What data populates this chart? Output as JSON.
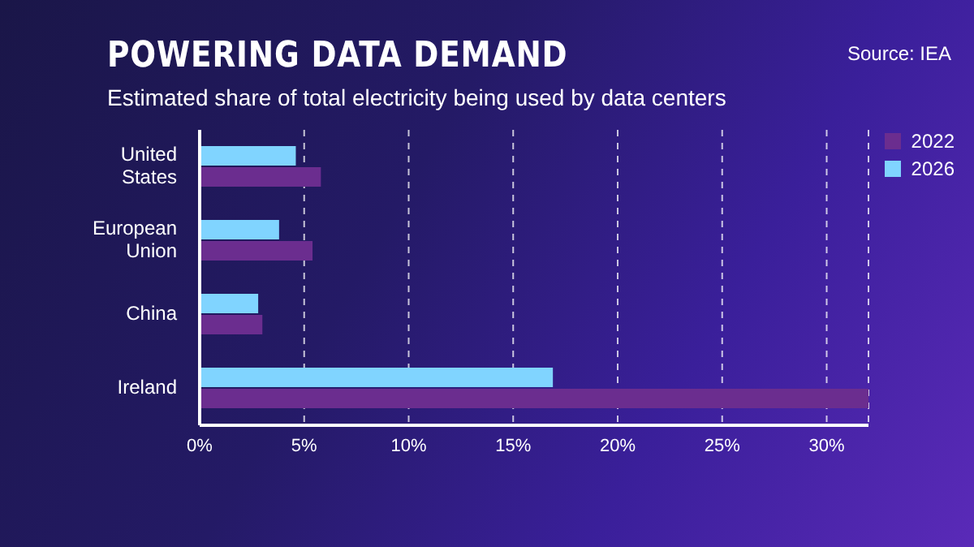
{
  "chart_data": {
    "type": "bar",
    "orientation": "horizontal",
    "title": "POWERING DATA DEMAND",
    "subtitle": "Estimated share of total electricity being used by data centers",
    "annotations": [
      "Source: IEA"
    ],
    "categories": [
      "United States",
      "European Union",
      "China",
      "Ireland"
    ],
    "series": [
      {
        "name": "2022",
        "color": "#6b2d8f",
        "values": [
          5.8,
          5.4,
          3.0,
          32.0
        ]
      },
      {
        "name": "2026",
        "color": "#80d4ff",
        "values": [
          4.6,
          3.8,
          2.8,
          16.9
        ]
      }
    ],
    "xlim": [
      0,
      32
    ],
    "xticks": [
      {
        "value": 0,
        "label": "0%"
      },
      {
        "value": 5,
        "label": "5%"
      },
      {
        "value": 10,
        "label": "10%"
      },
      {
        "value": 15,
        "label": "15%"
      },
      {
        "value": 20,
        "label": "20%"
      },
      {
        "value": 25,
        "label": "25%"
      },
      {
        "value": 30,
        "label": "30%"
      }
    ],
    "grid": "x",
    "legend": "top right"
  }
}
